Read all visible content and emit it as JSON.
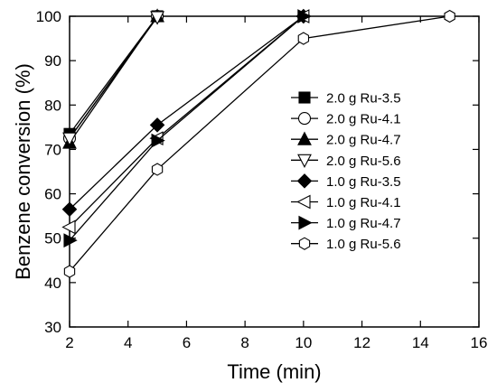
{
  "chart_data": {
    "type": "line",
    "xlabel": "Time (min)",
    "ylabel": "Benzene conversion (%)",
    "xlim": [
      2,
      16
    ],
    "ylim": [
      30,
      100
    ],
    "xticks": [
      2,
      4,
      6,
      8,
      10,
      12,
      14,
      16
    ],
    "yticks": [
      30,
      40,
      50,
      60,
      70,
      80,
      90,
      100
    ],
    "legend_position": "center-right",
    "series": [
      {
        "name": "2.0 g Ru-3.5",
        "marker": "square",
        "filled": true,
        "x": [
          2,
          5
        ],
        "y": [
          73.5,
          100
        ]
      },
      {
        "name": "2.0 g Ru-4.1",
        "marker": "circle",
        "filled": false,
        "x": [
          2,
          5
        ],
        "y": [
          72.5,
          100
        ]
      },
      {
        "name": "2.0 g Ru-4.7",
        "marker": "triangle-up",
        "filled": true,
        "x": [
          2,
          5
        ],
        "y": [
          71.5,
          100
        ]
      },
      {
        "name": "2.0 g Ru-5.6",
        "marker": "triangle-down",
        "filled": false,
        "x": [
          2,
          5
        ],
        "y": [
          72.5,
          99.8
        ]
      },
      {
        "name": "1.0 g Ru-3.5",
        "marker": "diamond",
        "filled": true,
        "x": [
          2,
          5,
          10
        ],
        "y": [
          56.5,
          75.5,
          100
        ]
      },
      {
        "name": "1.0 g Ru-4.1",
        "marker": "triangle-left",
        "filled": false,
        "x": [
          2,
          5,
          10
        ],
        "y": [
          52.5,
          72.5,
          100
        ]
      },
      {
        "name": "1.0 g Ru-4.7",
        "marker": "triangle-right",
        "filled": true,
        "x": [
          2,
          5,
          10
        ],
        "y": [
          49.5,
          72.0,
          100
        ]
      },
      {
        "name": "1.0 g Ru-5.6",
        "marker": "hexagon",
        "filled": false,
        "x": [
          2,
          5,
          10,
          15
        ],
        "y": [
          42.5,
          65.5,
          95.0,
          100
        ]
      }
    ]
  }
}
